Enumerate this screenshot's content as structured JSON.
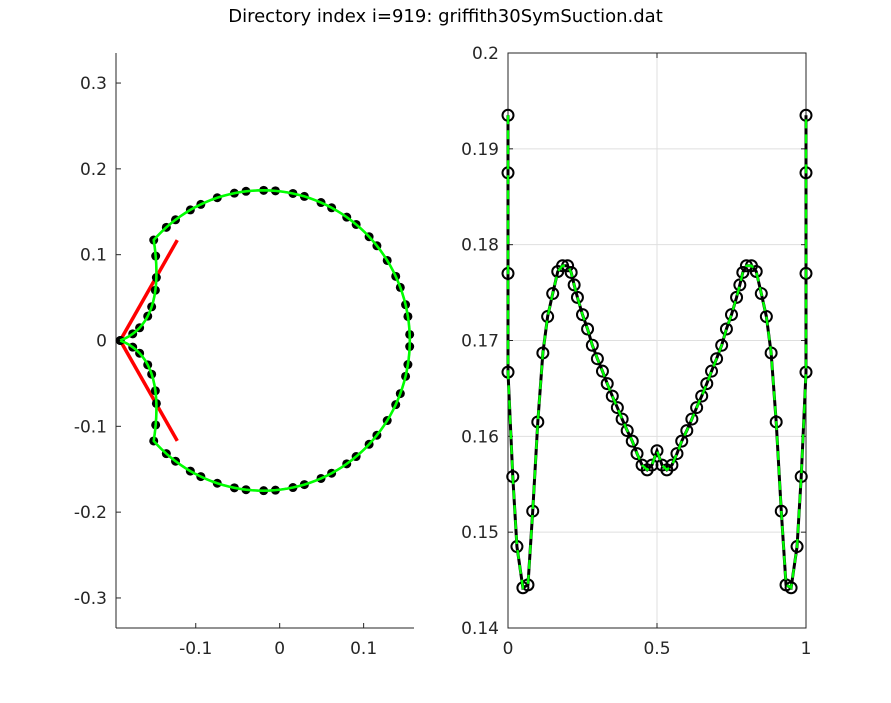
{
  "figure": {
    "title": "Directory index i=919: griffith30SymSuction.dat"
  },
  "colors": {
    "red": "#ff0000",
    "green": "#00ff00",
    "black": "#000000",
    "axis": "#262626",
    "grid": "#dfdfdf"
  },
  "chart_data": [
    {
      "type": "line",
      "name": "left-panel-airfoil-shape",
      "xlim": [
        -0.195,
        0.16
      ],
      "ylim": [
        -0.335,
        0.335
      ],
      "xticks": [
        -0.1,
        0,
        0.1
      ],
      "xtick_labels": [
        "-0.1",
        "0",
        "0.1"
      ],
      "yticks": [
        0.3,
        0.2,
        0.1,
        0,
        -0.1,
        -0.2,
        -0.3
      ],
      "ytick_labels": [
        "0.3",
        "0.2",
        "0.1",
        "0",
        "-0.1",
        "-0.2",
        "-0.3"
      ],
      "grid": false,
      "shape": {
        "center_x": -0.02,
        "radius": 0.175,
        "tip_x": -0.19,
        "junction_angle_deg": 138
      },
      "red_lines": [
        [
          -0.19,
          0,
          -0.122,
          0.117
        ],
        [
          -0.19,
          0,
          -0.122,
          -0.117
        ]
      ],
      "markers": {
        "style": "filled-dot",
        "count": 64
      }
    },
    {
      "type": "line",
      "name": "right-panel-distribution",
      "xlim": [
        0,
        1
      ],
      "ylim": [
        0.14,
        0.2
      ],
      "xticks": [
        0,
        0.5,
        1
      ],
      "xtick_labels": [
        "0",
        "0.5",
        "1"
      ],
      "yticks": [
        0.2,
        0.19,
        0.18,
        0.17,
        0.16,
        0.15,
        0.14
      ],
      "ytick_labels": [
        "0.2",
        "0.19",
        "0.18",
        "0.17",
        "0.16",
        "0.15",
        "0.14"
      ],
      "grid": true,
      "x": [
        0.0,
        0.0,
        0.0,
        0.0,
        0.016,
        0.03,
        0.05,
        0.067,
        0.083,
        0.1,
        0.117,
        0.133,
        0.15,
        0.167,
        0.183,
        0.2,
        0.212,
        0.222,
        0.233,
        0.25,
        0.267,
        0.283,
        0.3,
        0.317,
        0.333,
        0.35,
        0.367,
        0.383,
        0.4,
        0.417,
        0.433,
        0.45,
        0.467,
        0.483,
        0.5,
        0.517,
        0.533,
        0.55,
        0.567,
        0.583,
        0.6,
        0.617,
        0.633,
        0.65,
        0.667,
        0.683,
        0.7,
        0.717,
        0.733,
        0.75,
        0.767,
        0.778,
        0.788,
        0.8,
        0.817,
        0.833,
        0.85,
        0.867,
        0.883,
        0.9,
        0.917,
        0.933,
        0.95,
        0.97,
        0.984,
        1.0,
        1.0,
        1.0,
        1.0
      ],
      "y": [
        0.1935,
        0.1875,
        0.177,
        0.1667,
        0.1558,
        0.1485,
        0.1442,
        0.1445,
        0.1522,
        0.1615,
        0.1687,
        0.1725,
        0.1749,
        0.1772,
        0.1778,
        0.1778,
        0.1771,
        0.1758,
        0.1745,
        0.1727,
        0.1712,
        0.1695,
        0.1681,
        0.1668,
        0.1655,
        0.1642,
        0.163,
        0.1618,
        0.1606,
        0.1595,
        0.1582,
        0.157,
        0.1565,
        0.157,
        0.1585,
        0.157,
        0.1565,
        0.157,
        0.1582,
        0.1595,
        0.1606,
        0.1618,
        0.163,
        0.1642,
        0.1655,
        0.1668,
        0.1681,
        0.1695,
        0.1712,
        0.1727,
        0.1745,
        0.1758,
        0.1771,
        0.1778,
        0.1778,
        0.1772,
        0.1749,
        0.1725,
        0.1687,
        0.1615,
        0.1522,
        0.1445,
        0.1442,
        0.1485,
        0.1558,
        0.1667,
        0.177,
        0.1875,
        0.1935
      ],
      "markers": {
        "style": "open-circle"
      }
    }
  ]
}
